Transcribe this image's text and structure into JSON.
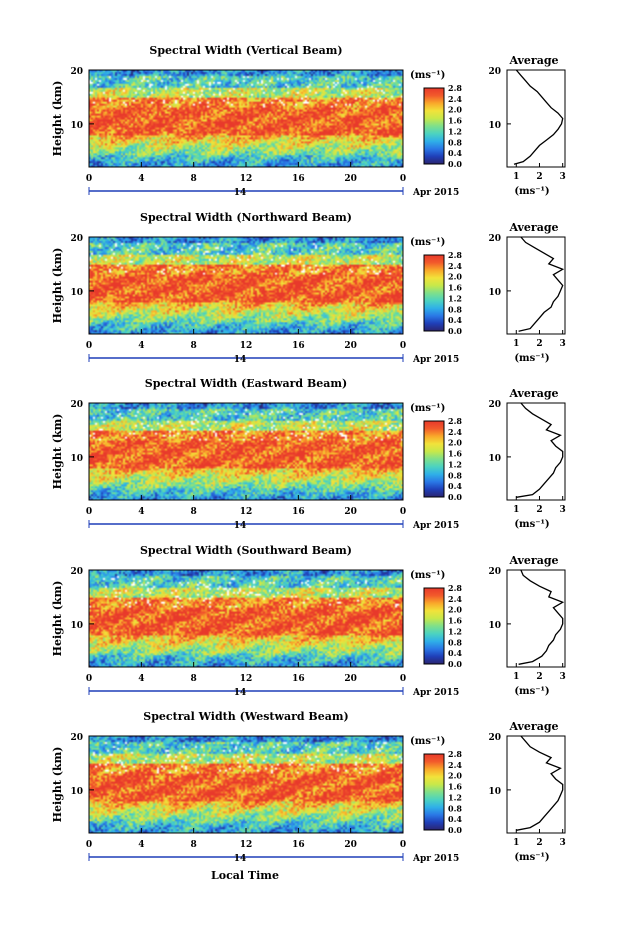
{
  "figure": {
    "date_label": "Apr 2015",
    "day_label": "14",
    "x_axis_title": "Local Time",
    "y_axis_title": "Height (km)",
    "x_ticks": [
      "0",
      "4",
      "8",
      "12",
      "16",
      "20",
      "0"
    ],
    "y_ticks": [
      "10",
      "20"
    ],
    "colorbar_unit": "(ms⁻¹)",
    "colorbar_ticks": [
      "0.0",
      "0.4",
      "0.8",
      "1.2",
      "1.6",
      "2.0",
      "2.4",
      "2.8"
    ],
    "avg_title": "Average",
    "avg_xlabel": "(ms⁻¹)",
    "avg_x_ticks": [
      "1",
      "2",
      "3"
    ],
    "avg_y_ticks": [
      "10",
      "20"
    ]
  },
  "colors": {
    "colormap": [
      "#2b2470",
      "#1f3fb8",
      "#2a78e6",
      "#2fb0e8",
      "#4cd3c0",
      "#7fe08a",
      "#c8e84a",
      "#f2e23a",
      "#f9a82a",
      "#f25a2b",
      "#e8392b"
    ]
  },
  "chart_data": [
    {
      "type": "heatmap",
      "title": "Spectral Width (Vertical Beam)",
      "xlabel": "",
      "ylabel": "Height (km)",
      "xlim": [
        0,
        24
      ],
      "ylim": [
        2,
        20
      ],
      "colorbar": {
        "label": "(ms⁻¹)",
        "range": [
          0.0,
          2.8
        ]
      },
      "average_profile": {
        "title": "Average",
        "xlabel": "(ms⁻¹)",
        "xlim": [
          0.6,
          3.1
        ],
        "height_km": [
          2.5,
          3,
          4,
          5,
          6,
          7,
          8,
          9,
          10,
          11,
          12,
          13,
          14,
          15,
          16,
          17,
          18,
          19,
          20
        ],
        "width_ms": [
          0.9,
          1.3,
          1.6,
          1.8,
          2.0,
          2.3,
          2.6,
          2.8,
          2.95,
          3.0,
          2.8,
          2.5,
          2.3,
          2.1,
          1.9,
          1.6,
          1.4,
          1.2,
          1.0
        ]
      }
    },
    {
      "type": "heatmap",
      "title": "Spectral Width (Northward Beam)",
      "xlabel": "",
      "ylabel": "Height (km)",
      "xlim": [
        0,
        24
      ],
      "ylim": [
        2,
        20
      ],
      "colorbar": {
        "label": "(ms⁻¹)",
        "range": [
          0.0,
          2.8
        ]
      },
      "average_profile": {
        "title": "Average",
        "xlabel": "(ms⁻¹)",
        "xlim": [
          0.6,
          3.1
        ],
        "height_km": [
          2.5,
          3,
          4,
          5,
          6,
          7,
          8,
          9,
          10,
          11,
          12,
          13,
          14,
          15,
          16,
          17,
          18,
          19,
          20
        ],
        "width_ms": [
          1.1,
          1.6,
          1.8,
          2.0,
          2.2,
          2.5,
          2.6,
          2.8,
          2.9,
          3.0,
          2.8,
          2.6,
          3.0,
          2.4,
          2.6,
          2.2,
          1.8,
          1.4,
          1.2
        ]
      }
    },
    {
      "type": "heatmap",
      "title": "Spectral Width (Eastward Beam)",
      "xlabel": "",
      "ylabel": "Height (km)",
      "xlim": [
        0,
        24
      ],
      "ylim": [
        2,
        20
      ],
      "colorbar": {
        "label": "(ms⁻¹)",
        "range": [
          0.0,
          2.8
        ]
      },
      "average_profile": {
        "title": "Average",
        "xlabel": "(ms⁻¹)",
        "xlim": [
          0.6,
          3.1
        ],
        "height_km": [
          2.5,
          3,
          4,
          5,
          6,
          7,
          8,
          9,
          10,
          11,
          12,
          13,
          14,
          15,
          16,
          17,
          18,
          19,
          20
        ],
        "width_ms": [
          1.0,
          1.7,
          2.0,
          2.2,
          2.4,
          2.6,
          2.7,
          2.9,
          3.0,
          3.0,
          2.7,
          2.5,
          2.9,
          2.3,
          2.5,
          2.1,
          1.7,
          1.4,
          1.2
        ]
      }
    },
    {
      "type": "heatmap",
      "title": "Spectral Width (Southward Beam)",
      "xlabel": "",
      "ylabel": "Height (km)",
      "xlim": [
        0,
        24
      ],
      "ylim": [
        2,
        20
      ],
      "colorbar": {
        "label": "(ms⁻¹)",
        "range": [
          0.0,
          2.8
        ]
      },
      "average_profile": {
        "title": "Average",
        "xlabel": "(ms⁻¹)",
        "xlim": [
          0.6,
          3.1
        ],
        "height_km": [
          2.5,
          3,
          4,
          5,
          6,
          7,
          8,
          9,
          10,
          11,
          12,
          13,
          14,
          15,
          16,
          17,
          18,
          19,
          20
        ],
        "width_ms": [
          1.1,
          1.7,
          2.1,
          2.3,
          2.4,
          2.6,
          2.7,
          2.9,
          3.0,
          3.0,
          2.8,
          2.6,
          3.0,
          2.4,
          2.5,
          2.0,
          1.6,
          1.3,
          1.2
        ]
      }
    },
    {
      "type": "heatmap",
      "title": "Spectral Width (Westward Beam)",
      "xlabel": "",
      "ylabel": "Height (km)",
      "xlim": [
        0,
        24
      ],
      "ylim": [
        2,
        20
      ],
      "colorbar": {
        "label": "(ms⁻¹)",
        "range": [
          0.0,
          2.8
        ]
      },
      "average_profile": {
        "title": "Average",
        "xlabel": "(ms⁻¹)",
        "xlim": [
          0.6,
          3.1
        ],
        "height_km": [
          2.5,
          3,
          4,
          5,
          6,
          7,
          8,
          9,
          10,
          11,
          12,
          13,
          14,
          15,
          16,
          17,
          18,
          19,
          20
        ],
        "width_ms": [
          1.0,
          1.6,
          2.0,
          2.2,
          2.4,
          2.6,
          2.8,
          2.9,
          3.0,
          3.0,
          2.7,
          2.5,
          2.9,
          2.3,
          2.5,
          2.0,
          1.6,
          1.4,
          1.2
        ]
      }
    }
  ]
}
